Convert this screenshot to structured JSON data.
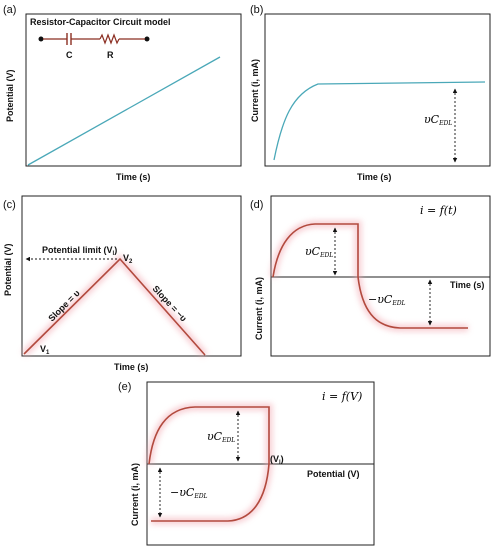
{
  "panels": {
    "a": {
      "letter": "(a)",
      "title": "Resistor-Capacitor  Circuit model",
      "cap_label": "C",
      "res_label": "R",
      "ylabel": "Potential (V)",
      "xlabel": "Time (s)"
    },
    "b": {
      "letter": "(b)",
      "ylabel": "Current (i, mA)",
      "xlabel": "Time (s)",
      "annotation_base": "υC",
      "annotation_sub": "EDL"
    },
    "c": {
      "letter": "(c)",
      "ylabel": "Potential (V)",
      "xlabel": "Time (s)",
      "limit_label": "Potential limit (V",
      "limit_sub": "l",
      "limit_close": ")",
      "v1": "V",
      "v1_sub": "1",
      "v2": "V",
      "v2_sub": "2",
      "slope_up": "Slope = υ",
      "slope_down": "Slope = −υ"
    },
    "d": {
      "letter": "(d)",
      "equation": "i = f(t)",
      "ylabel": "Current (i, mA)",
      "xlabel": "Time (s)",
      "pos_base": "υC",
      "pos_sub": "EDL",
      "neg_base": "−υC",
      "neg_sub": "EDL"
    },
    "e": {
      "letter": "(e)",
      "equation": "i = f(V)",
      "ylabel": "Current (i, mA)",
      "xlabel": "Potential (V)",
      "vl_label": "(V",
      "vl_sub": "l",
      "vl_close": ")",
      "pos_base": "υC",
      "pos_sub": "EDL",
      "neg_base": "−υC",
      "neg_sub": "EDL"
    }
  },
  "colors": {
    "teal": "#4aa8b8",
    "red_line": "#b24a3e",
    "glow": "#f2a7b1",
    "wire": "#8b2e22"
  }
}
